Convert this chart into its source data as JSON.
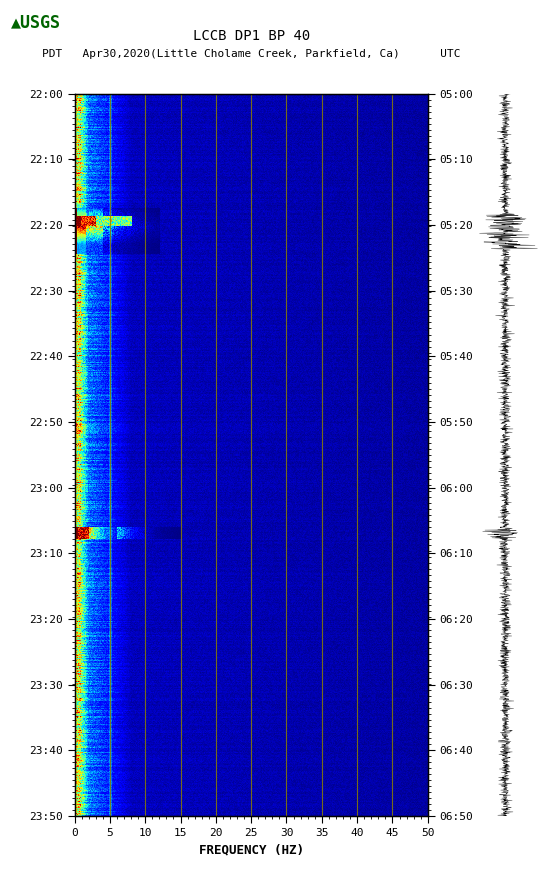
{
  "title_line1": "LCCB DP1 BP 40",
  "title_line2": "PDT   Apr30,2020(Little Cholame Creek, Parkfield, Ca)      UTC",
  "left_time_labels": [
    "22:00",
    "22:10",
    "22:20",
    "22:30",
    "22:40",
    "22:50",
    "23:00",
    "23:10",
    "23:20",
    "23:30",
    "23:40",
    "23:50"
  ],
  "right_time_labels": [
    "05:00",
    "05:10",
    "05:20",
    "05:30",
    "05:40",
    "05:50",
    "06:00",
    "06:10",
    "06:20",
    "06:30",
    "06:40",
    "06:50"
  ],
  "freq_min": 0,
  "freq_max": 50,
  "freq_ticks": [
    0,
    5,
    10,
    15,
    20,
    25,
    30,
    35,
    40,
    45,
    50
  ],
  "freq_label": "FREQUENCY (HZ)",
  "n_time_rows": 720,
  "n_freq_cols": 500,
  "fig_bg": "#ffffff",
  "vertical_lines_at": [
    5,
    10,
    15,
    20,
    25,
    30,
    35,
    40,
    45
  ],
  "vertical_line_color": "#8B8000",
  "colormap": "jet",
  "usgs_color": "#006400"
}
